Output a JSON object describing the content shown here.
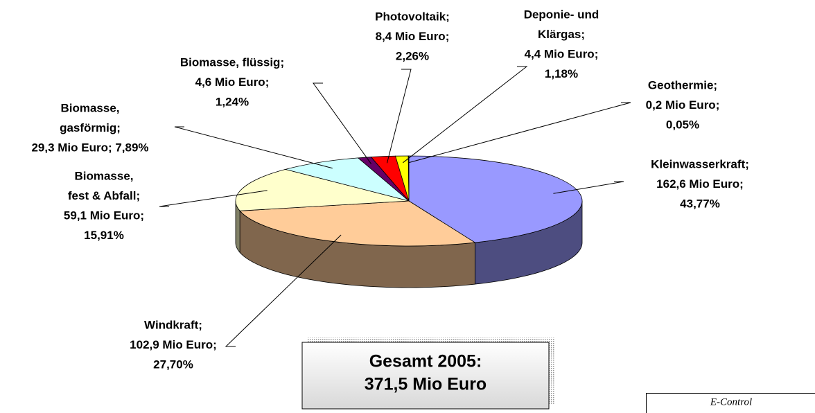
{
  "chart_data": {
    "type": "pie3d",
    "categories": [
      [
        "Kleinwasserkraft;",
        "162,6 Mio Euro;",
        "43,77%"
      ],
      [
        "Windkraft;",
        "102,9 Mio Euro;",
        "27,70%"
      ],
      [
        "Biomasse,",
        "fest & Abfall;",
        "59,1 Mio Euro;",
        "15,91%"
      ],
      [
        "Biomasse,",
        "gasförmig;",
        "29,3 Mio Euro; 7,89%"
      ],
      [
        "Biomasse, flüssig;",
        "4,6 Mio Euro;",
        "1,24%"
      ],
      [
        "Photovoltaik;",
        "8,4 Mio Euro;",
        "2,26%"
      ],
      [
        "Deponie- und",
        "Klärgas;",
        "4,4 Mio Euro;",
        "1,18%"
      ],
      [
        "Geothermie;",
        "0,2 Mio Euro;",
        "0,05%"
      ]
    ],
    "values": [
      162.6,
      102.9,
      59.1,
      29.3,
      4.6,
      8.4,
      4.4,
      0.2
    ],
    "colors": [
      "#9999ff",
      "#ffcc99",
      "#ffffcc",
      "#ccffff",
      "#660066",
      "#ff0000",
      "#ffff00",
      "#ffffff"
    ],
    "total": [
      "Gesamt 2005:",
      "371,5 Mio Euro"
    ],
    "source": "E-Control"
  }
}
